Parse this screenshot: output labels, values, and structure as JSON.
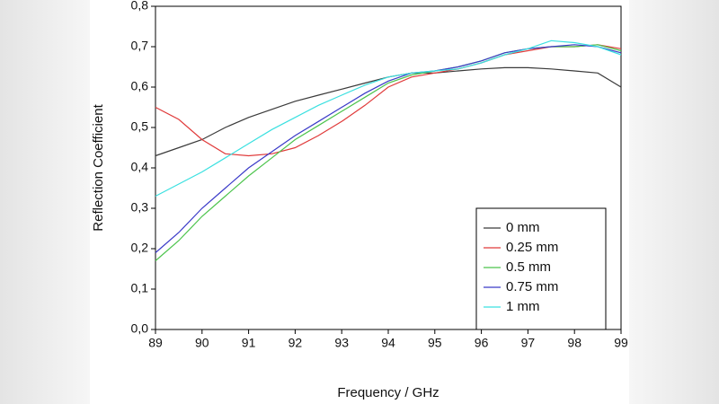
{
  "chart_data": {
    "type": "line",
    "xlabel": "Frequency / GHz",
    "ylabel": "Reflection Coefficient",
    "x": [
      89,
      89.5,
      90,
      90.5,
      91,
      91.5,
      92,
      92.5,
      93,
      93.5,
      94,
      94.5,
      95,
      95.5,
      96,
      96.5,
      97,
      97.5,
      98,
      98.5,
      99
    ],
    "series": [
      {
        "name": "0 mm",
        "color": "#3a3a3a",
        "values": [
          0.43,
          0.45,
          0.47,
          0.5,
          0.525,
          0.545,
          0.565,
          0.58,
          0.595,
          0.61,
          0.625,
          0.635,
          0.635,
          0.64,
          0.645,
          0.648,
          0.648,
          0.645,
          0.64,
          0.635,
          0.6
        ]
      },
      {
        "name": "0.25 mm",
        "color": "#e03a3a",
        "values": [
          0.55,
          0.52,
          0.47,
          0.435,
          0.43,
          0.435,
          0.45,
          0.48,
          0.515,
          0.555,
          0.6,
          0.625,
          0.635,
          0.645,
          0.66,
          0.68,
          0.69,
          0.7,
          0.7,
          0.705,
          0.695
        ]
      },
      {
        "name": "0.5 mm",
        "color": "#4cc44c",
        "values": [
          0.17,
          0.22,
          0.28,
          0.33,
          0.38,
          0.425,
          0.47,
          0.505,
          0.54,
          0.575,
          0.61,
          0.63,
          0.64,
          0.65,
          0.665,
          0.685,
          0.695,
          0.7,
          0.7,
          0.705,
          0.69
        ]
      },
      {
        "name": "0.75 mm",
        "color": "#3a3ac8",
        "values": [
          0.19,
          0.24,
          0.3,
          0.35,
          0.4,
          0.44,
          0.48,
          0.515,
          0.55,
          0.585,
          0.615,
          0.635,
          0.64,
          0.65,
          0.665,
          0.685,
          0.695,
          0.7,
          0.705,
          0.7,
          0.685
        ]
      },
      {
        "name": "1 mm",
        "color": "#3ae0e0",
        "values": [
          0.33,
          0.36,
          0.39,
          0.425,
          0.46,
          0.495,
          0.525,
          0.555,
          0.58,
          0.605,
          0.625,
          0.635,
          0.64,
          0.645,
          0.66,
          0.68,
          0.695,
          0.715,
          0.71,
          0.7,
          0.68
        ]
      }
    ],
    "xlim": [
      89,
      99
    ],
    "xticks": [
      89,
      90,
      91,
      92,
      93,
      94,
      95,
      96,
      97,
      98,
      99
    ],
    "ylim": [
      0,
      0.8
    ],
    "yticks": [
      {
        "value": 0,
        "label": "0,0"
      },
      {
        "value": 0.1,
        "label": "0,1"
      },
      {
        "value": 0.2,
        "label": "0,2"
      },
      {
        "value": 0.3,
        "label": "0,3"
      },
      {
        "value": 0.4,
        "label": "0,4"
      },
      {
        "value": 0.5,
        "label": "0,5"
      },
      {
        "value": 0.6,
        "label": "0,6"
      },
      {
        "value": 0.7,
        "label": "0,7"
      },
      {
        "value": 0.8,
        "label": "0,8"
      }
    ],
    "legend": "lower right"
  }
}
